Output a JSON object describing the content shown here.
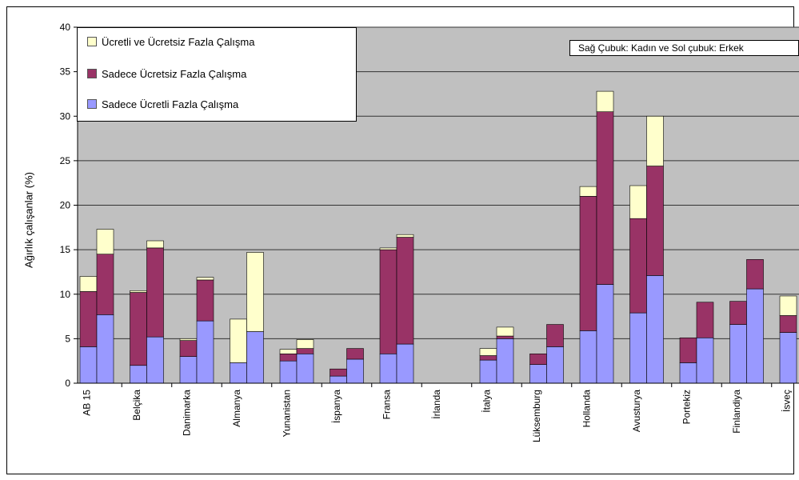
{
  "chart_data": {
    "type": "bar",
    "title": "",
    "xlabel": "",
    "ylabel": "Ağırlık çalışanlar (%)",
    "ylim": [
      0,
      40
    ],
    "yticks": [
      0,
      5,
      10,
      15,
      20,
      25,
      30,
      35,
      40
    ],
    "grid": true,
    "legend_position": "top-left",
    "note": "Sağ Çubuk: Kadın ve Sol çubuk: Erkek",
    "categories": [
      "AB 15",
      "Belçika",
      "Danimarka",
      "Almanya",
      "Yunanistan",
      "İspanya",
      "Fransa",
      "İrlanda",
      "İtalya",
      "Lüksemburg",
      "Hollanda",
      "Avusturya",
      "Portekiz",
      "Finlandiya",
      "İsveç"
    ],
    "series": [
      {
        "name": "Sadece Ücretli Fazla Çalışma",
        "color": "#9999ff",
        "left": [
          4.1,
          2.0,
          3.0,
          2.3,
          2.5,
          0.8,
          3.3,
          0.0,
          2.6,
          2.1,
          5.9,
          7.9,
          2.3,
          6.6,
          5.7
        ],
        "right": [
          7.7,
          5.2,
          7.0,
          5.8,
          3.3,
          2.7,
          4.4,
          0.0,
          5.0,
          4.1,
          11.1,
          12.1,
          5.1,
          10.6,
          null
        ]
      },
      {
        "name": "Sadece Ücretsiz Fazla Çalışma",
        "color": "#993366",
        "left": [
          6.2,
          8.2,
          1.8,
          0.0,
          0.8,
          0.8,
          11.7,
          0.0,
          0.5,
          1.2,
          15.1,
          10.6,
          2.8,
          2.6,
          1.9
        ],
        "right": [
          6.8,
          10.0,
          4.6,
          0.0,
          0.6,
          1.2,
          12.0,
          0.0,
          0.3,
          2.5,
          19.4,
          12.3,
          4.0,
          3.3,
          null
        ]
      },
      {
        "name": "Ücretli ve Ücretsiz Fazla Çalışma",
        "color": "#ffffcc",
        "left": [
          1.7,
          0.2,
          0.2,
          4.9,
          0.5,
          0.0,
          0.2,
          0.0,
          0.8,
          0.0,
          1.1,
          3.7,
          0.0,
          0.0,
          2.2
        ],
        "right": [
          2.8,
          0.8,
          0.3,
          8.9,
          1.0,
          0.0,
          0.3,
          0.0,
          1.0,
          0.0,
          2.3,
          5.6,
          0.0,
          0.0,
          null
        ]
      }
    ]
  },
  "legend": {
    "item1": "Ücretli ve Ücretsiz Fazla Çalışma",
    "item2": "Sadece Ücretsiz Fazla Çalışma",
    "item3": "Sadece Ücretli Fazla Çalışma"
  },
  "colors": {
    "plot_background": "#c0c0c0",
    "paid": "#9999ff",
    "unpaid": "#993366",
    "both": "#ffffcc"
  }
}
